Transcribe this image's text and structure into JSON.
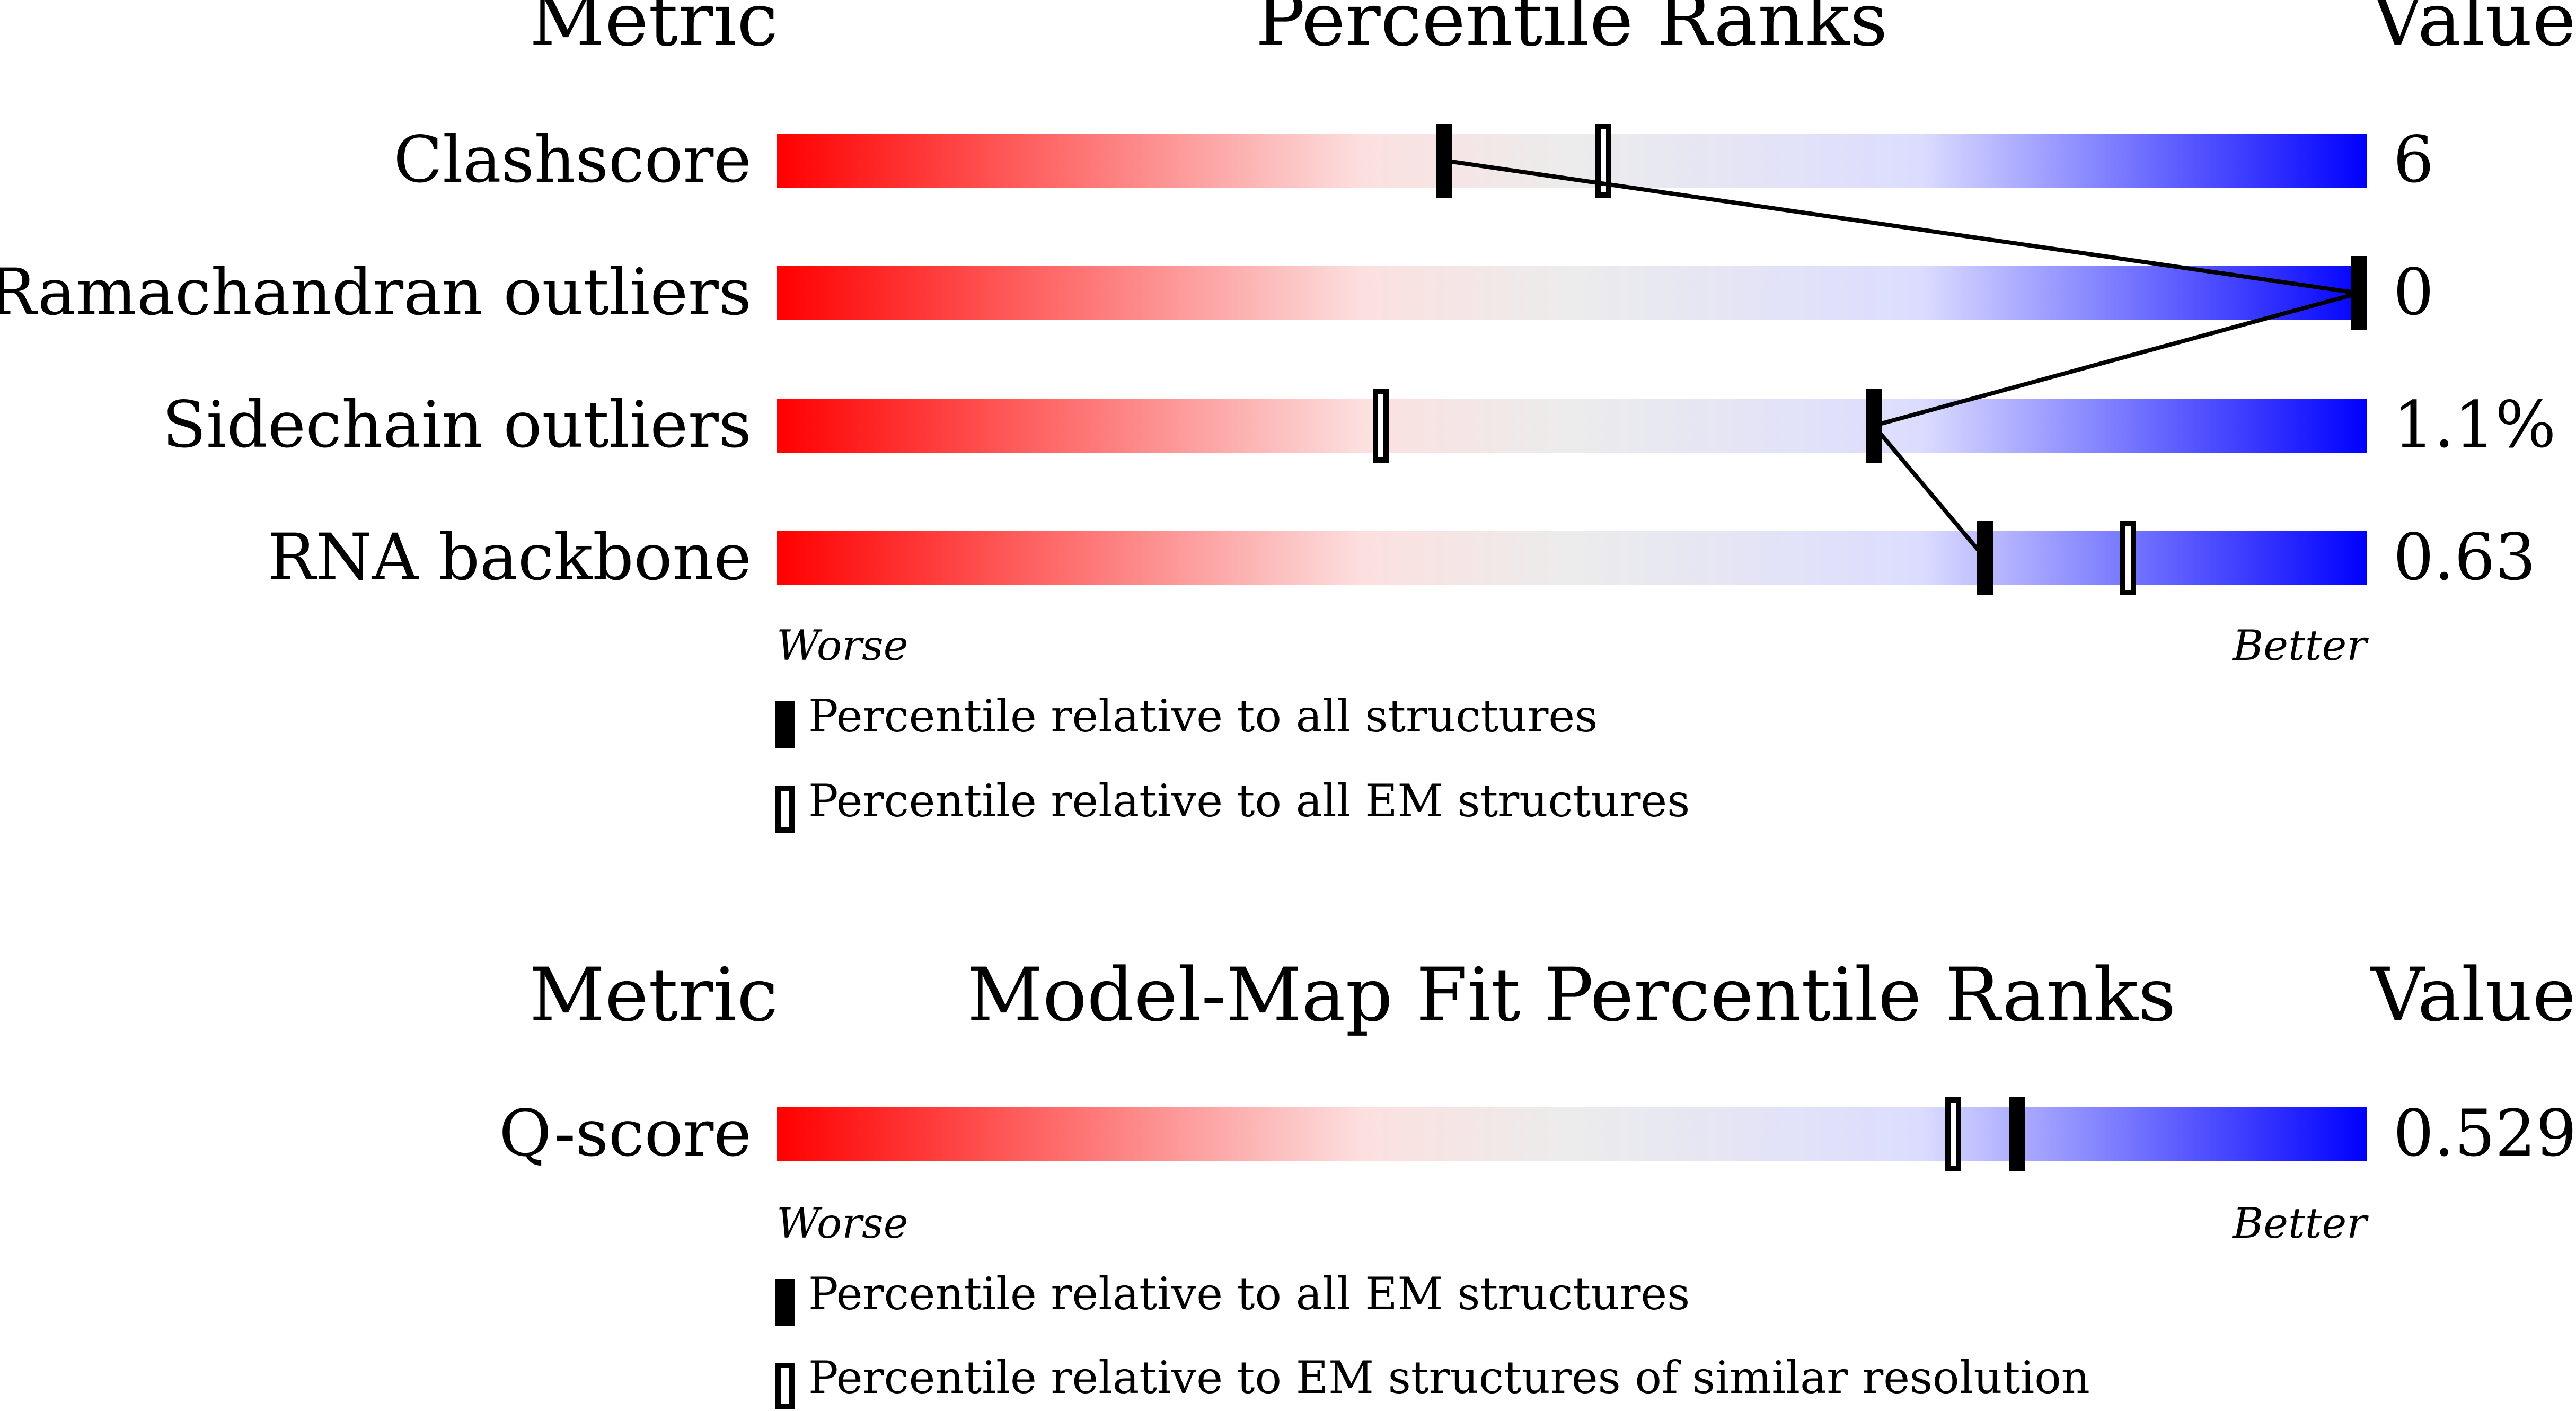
{
  "colors": {
    "worse": "#ff0000",
    "mid_red": "#fce0e0",
    "neutral": "#ececec",
    "mid_blue": "#dcdcff",
    "better": "#0000ff",
    "marker": "#000000",
    "background": "#ffffff"
  },
  "chart_data": [
    {
      "type": "bar",
      "title": "Percentile Ranks",
      "metric_header": "Metric",
      "value_header": "Value",
      "xlim": [
        0,
        100
      ],
      "axis_worse_label": "Worse",
      "axis_better_label": "Better",
      "series": [
        {
          "name": "Percentile relative to all structures",
          "style": "filled"
        },
        {
          "name": "Percentile relative to all EM structures",
          "style": "open"
        }
      ],
      "rows": [
        {
          "metric": "Clashscore",
          "value": "6",
          "percentile_all": 42,
          "percentile_em": 52
        },
        {
          "metric": "Ramachandran outliers",
          "value": "0",
          "percentile_all": 100,
          "percentile_em": 100
        },
        {
          "metric": "Sidechain outliers",
          "value": "1.1%",
          "percentile_all": 69,
          "percentile_em": 38
        },
        {
          "metric": "RNA backbone",
          "value": "0.63",
          "percentile_all": 76,
          "percentile_em": 85
        }
      ],
      "connect_series": "filled"
    },
    {
      "type": "bar",
      "title": "Model-Map Fit Percentile Ranks",
      "metric_header": "Metric",
      "value_header": "Value",
      "xlim": [
        0,
        100
      ],
      "axis_worse_label": "Worse",
      "axis_better_label": "Better",
      "series": [
        {
          "name": "Percentile relative to all EM structures",
          "style": "filled"
        },
        {
          "name": "Percentile relative to EM structures of similar resolution",
          "style": "open"
        }
      ],
      "rows": [
        {
          "metric": "Q-score",
          "value": "0.529",
          "percentile_all": 78,
          "percentile_em": 74
        }
      ]
    }
  ]
}
